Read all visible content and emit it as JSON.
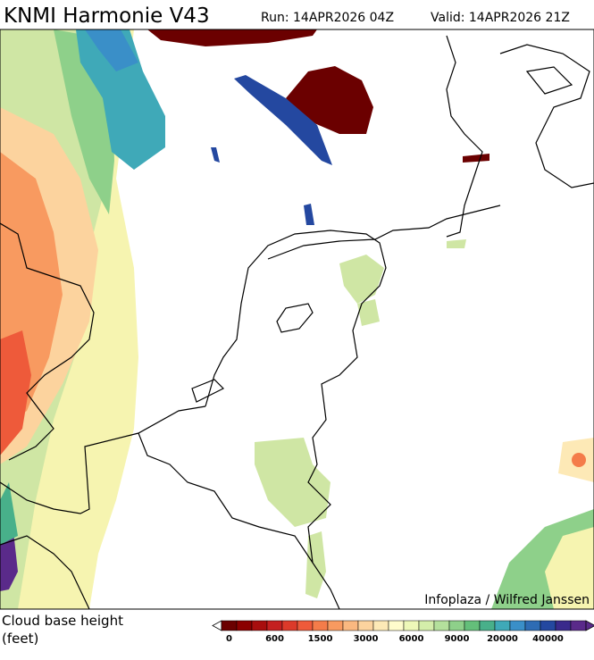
{
  "header": {
    "title": "KNMI Harmonie V43",
    "run": "Run: 14APR2026 04Z",
    "valid": "Valid: 14APR2026 21Z"
  },
  "credit": "Infoplaza / Wilfred Janssen",
  "legend": {
    "title_lines": [
      "Cloud base height",
      "(feet)"
    ],
    "ticks": [
      0,
      600,
      1500,
      3000,
      6000,
      9000,
      20000,
      40000
    ],
    "colors": [
      "#6b0000",
      "#8b0000",
      "#a80e0e",
      "#c42020",
      "#dc3a2a",
      "#ee5a3a",
      "#f47c4a",
      "#f89a60",
      "#fab880",
      "#fcd39e",
      "#fde9b6",
      "#fffccc",
      "#eef8b8",
      "#d4edaa",
      "#b4e09c",
      "#8ed08a",
      "#64bf7a",
      "#48b08a",
      "#3fa9b8",
      "#3a8fc8",
      "#2e6cb4",
      "#2448a0",
      "#3a2a8c",
      "#5a2a8a"
    ]
  }
}
